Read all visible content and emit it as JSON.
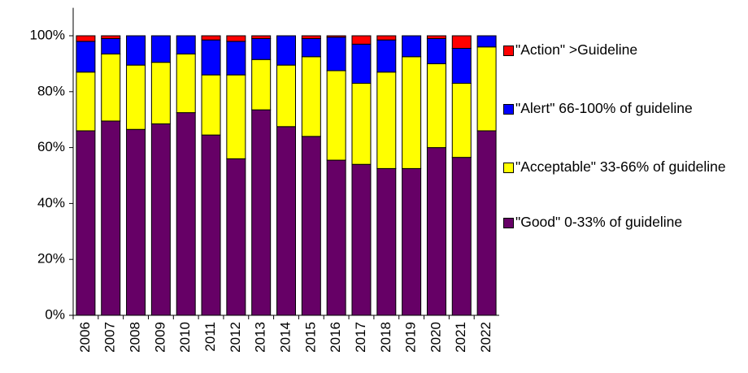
{
  "chart_data": {
    "type": "stacked_bar",
    "categories": [
      "2006",
      "2007",
      "2008",
      "2009",
      "2010",
      "2011",
      "2012",
      "2013",
      "2014",
      "2015",
      "2016",
      "2017",
      "2018",
      "2019",
      "2020",
      "2021",
      "2022"
    ],
    "series": [
      {
        "name": "\"Good\" 0-33% of guideline",
        "color": "#660066",
        "values": [
          66,
          69.5,
          66.5,
          68.5,
          72.5,
          64.5,
          56,
          73.5,
          67.5,
          64,
          55.5,
          54,
          52.5,
          52.5,
          60,
          56.5,
          66
        ]
      },
      {
        "name": "\"Acceptable\" 33-66% of guideline",
        "color": "#ffff00",
        "values": [
          21,
          24,
          23,
          22,
          21,
          21.5,
          30,
          18,
          22,
          28.5,
          32,
          29,
          34.5,
          40,
          30,
          26.5,
          30
        ]
      },
      {
        "name": "\"Alert\" 66-100% of guideline",
        "color": "#0000ff",
        "values": [
          11,
          5.5,
          10.5,
          9.5,
          6.5,
          12.5,
          12,
          7.5,
          10.5,
          6.5,
          12,
          14,
          11.5,
          7.5,
          9,
          12.5,
          4
        ]
      },
      {
        "name": "\"Action\" >Guideline",
        "color": "#ff0000",
        "values": [
          2,
          1,
          0,
          0,
          0,
          1.5,
          2,
          1,
          0,
          1,
          0.5,
          3,
          1.5,
          0,
          1,
          4.5,
          0
        ]
      }
    ],
    "ylim": [
      0,
      110
    ],
    "yticks": [
      {
        "value": 0,
        "label": "0%"
      },
      {
        "value": 20,
        "label": "20%"
      },
      {
        "value": 40,
        "label": "40%"
      },
      {
        "value": 60,
        "label": "60%"
      },
      {
        "value": 80,
        "label": "80%"
      },
      {
        "value": 100,
        "label": "100%"
      }
    ],
    "grid": false,
    "legend": "right"
  }
}
